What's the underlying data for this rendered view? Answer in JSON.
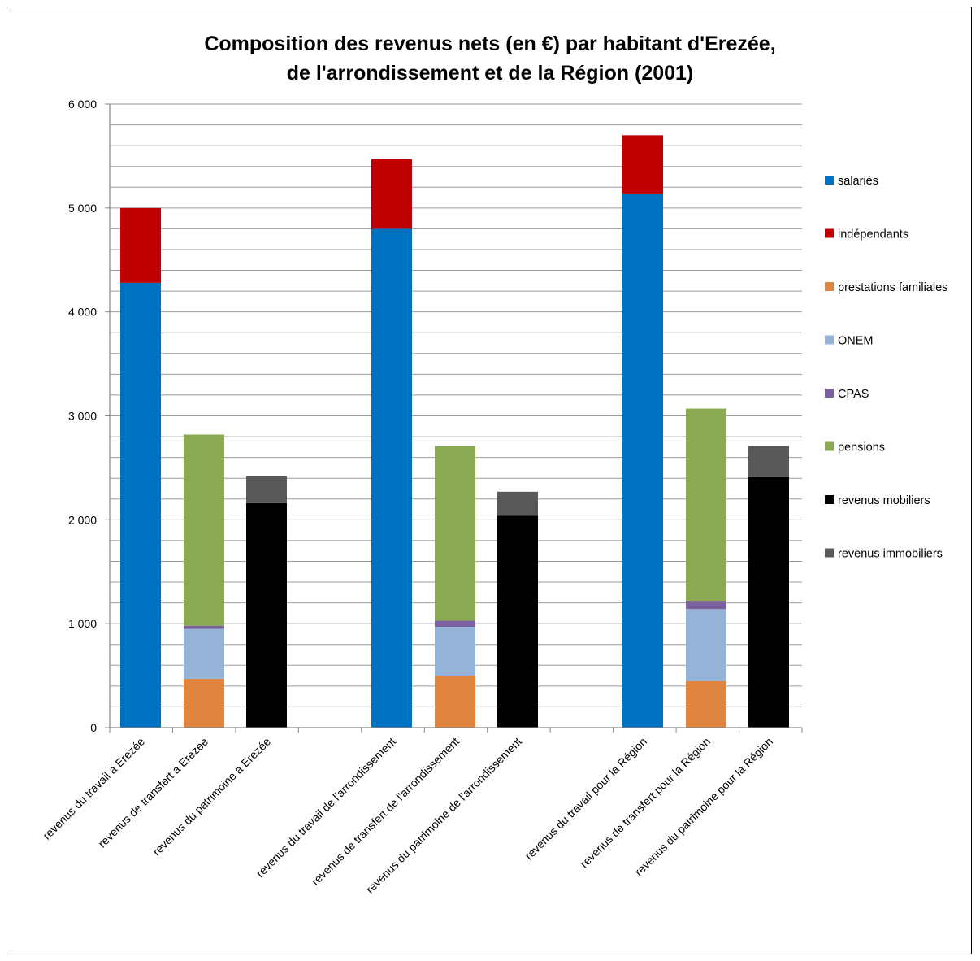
{
  "chart_data": {
    "type": "bar",
    "stacked": true,
    "title_lines": [
      "Composition des revenus nets (en €) par habitant d'Erezée,",
      "de l'arrondissement et de la Région (2001)"
    ],
    "xlabel": "",
    "ylabel": "",
    "ylim": [
      0,
      6000
    ],
    "y_ticks": [
      0,
      1000,
      2000,
      3000,
      4000,
      5000,
      6000
    ],
    "y_tick_labels": [
      "0",
      "1 000",
      "2 000",
      "3 000",
      "4 000",
      "5 000",
      "6 000"
    ],
    "minor_gridline_step": 200,
    "grid": true,
    "legend_position": "right",
    "categories": [
      "revenus du travail à Erezée",
      "revenus de transfert à Erezée",
      "revenus du patrimoine à Erezée",
      "revenus du travail de l'arrondissement",
      "revenus de transfert de l'arrondissement",
      "revenus du patrimoine de l'arrondissement",
      "revenus du travail pour la Région",
      "revenus de transfert pour la Région",
      "revenus du patrimoine pour la Région"
    ],
    "category_groups": [
      [
        0,
        1,
        2
      ],
      [
        3,
        4,
        5
      ],
      [
        6,
        7,
        8
      ]
    ],
    "series": [
      {
        "name": "salariés",
        "color": "#0070C0",
        "values": [
          4280,
          0,
          0,
          4800,
          0,
          0,
          5140,
          0,
          0
        ]
      },
      {
        "name": "indépendants",
        "color": "#C00000",
        "values": [
          720,
          0,
          0,
          670,
          0,
          0,
          560,
          0,
          0
        ]
      },
      {
        "name": "prestations familiales",
        "color": "#E0853F",
        "values": [
          0,
          470,
          0,
          0,
          500,
          0,
          0,
          450,
          0
        ]
      },
      {
        "name": "ONEM",
        "color": "#95B3D7",
        "values": [
          0,
          480,
          0,
          0,
          470,
          0,
          0,
          690,
          0
        ]
      },
      {
        "name": "CPAS",
        "color": "#7B629F",
        "values": [
          0,
          30,
          0,
          0,
          60,
          0,
          0,
          80,
          0
        ]
      },
      {
        "name": "pensions",
        "color": "#8BA852",
        "values": [
          0,
          1840,
          0,
          0,
          1680,
          0,
          0,
          1850,
          0
        ]
      },
      {
        "name": "revenus mobiliers",
        "color": "#000000",
        "values": [
          0,
          0,
          2160,
          0,
          0,
          2040,
          0,
          0,
          2410
        ]
      },
      {
        "name": "revenus immobiliers",
        "color": "#595959",
        "values": [
          0,
          0,
          260,
          0,
          0,
          230,
          0,
          0,
          300
        ]
      }
    ]
  }
}
